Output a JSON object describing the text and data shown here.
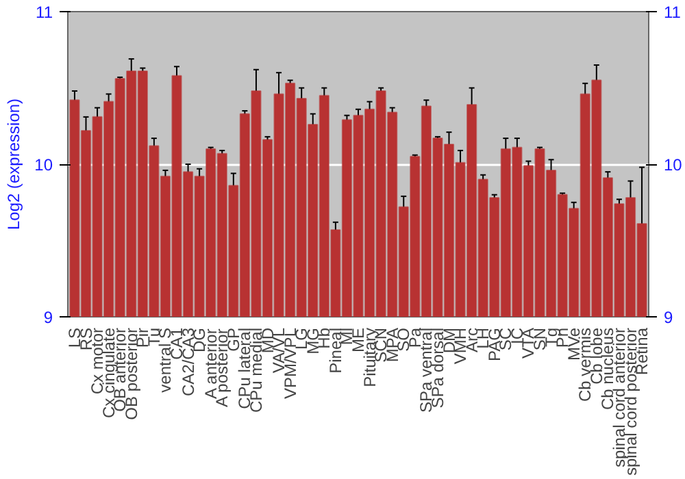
{
  "chart_data": {
    "type": "bar",
    "ylabel": "Log2 (expression)",
    "categories": [
      "LS",
      "RS",
      "Cx motor",
      "Cx cingulate",
      "OB anterior",
      "OB posterior",
      "Pir",
      "Tu",
      "ventral S",
      "CA1",
      "CA2/CA3",
      "DG",
      "A anterior",
      "A posterior",
      "GP",
      "CPu lateral",
      "CPu medial",
      "MD",
      "VA/VL",
      "VPM/VPL",
      "LG",
      "MG",
      "Hb",
      "Pineal",
      "Ml",
      "ME",
      "Pituitary",
      "SCN",
      "MPA",
      "SO",
      "Pa",
      "SPa ventral",
      "SPa dorsal",
      "DM",
      "VMH",
      "Arc",
      "LH",
      "PAG",
      "SC",
      "IC",
      "VTA",
      "SN",
      "Tg",
      "Pn",
      "MVe",
      "Cb vermis",
      "Cb lobe",
      "Cb nucleus",
      "spinal cord anterior",
      "spinal cord posterior",
      "Retina"
    ],
    "values": [
      10.42,
      10.22,
      10.31,
      10.41,
      10.56,
      10.61,
      10.61,
      10.12,
      9.92,
      10.58,
      9.95,
      9.92,
      10.1,
      10.07,
      9.86,
      10.33,
      10.48,
      10.16,
      10.46,
      10.53,
      10.43,
      10.26,
      10.45,
      9.57,
      10.29,
      10.32,
      10.36,
      10.48,
      10.34,
      9.72,
      10.05,
      10.38,
      10.17,
      10.13,
      10.01,
      10.39,
      9.9,
      9.78,
      10.1,
      10.11,
      9.99,
      10.1,
      9.96,
      9.8,
      9.71,
      10.46,
      10.55,
      9.91,
      9.74,
      9.78,
      9.61
    ],
    "errors": [
      0.06,
      0.09,
      0.06,
      0.05,
      0.01,
      0.08,
      0.02,
      0.05,
      0.04,
      0.06,
      0.05,
      0.05,
      0.01,
      0.02,
      0.08,
      0.02,
      0.14,
      0.02,
      0.14,
      0.02,
      0.07,
      0.07,
      0.05,
      0.05,
      0.03,
      0.04,
      0.05,
      0.02,
      0.03,
      0.07,
      0.01,
      0.04,
      0.01,
      0.08,
      0.08,
      0.11,
      0.03,
      0.02,
      0.07,
      0.06,
      0.03,
      0.01,
      0.07,
      0.01,
      0.04,
      0.07,
      0.1,
      0.04,
      0.03,
      0.11,
      0.37
    ],
    "color": "#b83232",
    "ylim": [
      9,
      11
    ],
    "yticks": [
      9,
      10,
      11
    ],
    "y2lim": [
      9,
      11
    ],
    "y2ticks": [
      9,
      10,
      11
    ],
    "grid": "y"
  }
}
